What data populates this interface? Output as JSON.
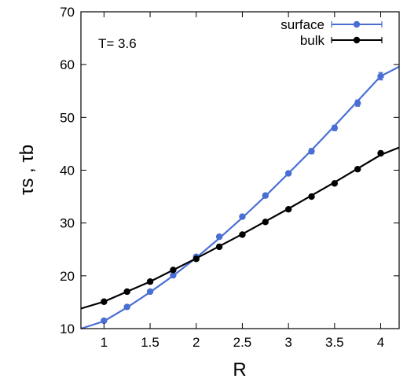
{
  "chart_data": {
    "type": "scatter",
    "xlabel": "R",
    "ylabel": "τs , τb",
    "annotation": "T= 3.6",
    "xlim": [
      0.75,
      4.2
    ],
    "ylim": [
      10,
      70
    ],
    "xticks": [
      1,
      1.5,
      2,
      2.5,
      3,
      3.5,
      4
    ],
    "yticks": [
      10,
      20,
      30,
      40,
      50,
      60,
      70
    ],
    "legend_position": "top-right",
    "series": [
      {
        "name": "surface",
        "color": "#4a6fd4",
        "marker": "circle",
        "points": [
          {
            "x": 1.0,
            "y": 11.5,
            "err": 0.3
          },
          {
            "x": 1.25,
            "y": 14.1,
            "err": 0.3
          },
          {
            "x": 1.5,
            "y": 17.0,
            "err": 0.3
          },
          {
            "x": 1.75,
            "y": 20.1,
            "err": 0.3
          },
          {
            "x": 2.0,
            "y": 23.6,
            "err": 0.3
          },
          {
            "x": 2.25,
            "y": 27.4,
            "err": 0.3
          },
          {
            "x": 2.5,
            "y": 31.2,
            "err": 0.3
          },
          {
            "x": 2.75,
            "y": 35.2,
            "err": 0.3
          },
          {
            "x": 3.0,
            "y": 39.4,
            "err": 0.4
          },
          {
            "x": 3.25,
            "y": 43.6,
            "err": 0.5
          },
          {
            "x": 3.5,
            "y": 48.0,
            "err": 0.5
          },
          {
            "x": 3.75,
            "y": 52.7,
            "err": 0.6
          },
          {
            "x": 4.0,
            "y": 57.8,
            "err": 0.7
          }
        ],
        "fit": [
          {
            "x": 0.75,
            "y": 10.0
          },
          {
            "x": 1.0,
            "y": 11.4
          },
          {
            "x": 1.25,
            "y": 14.0
          },
          {
            "x": 1.5,
            "y": 16.9
          },
          {
            "x": 1.75,
            "y": 20.0
          },
          {
            "x": 2.0,
            "y": 23.4
          },
          {
            "x": 2.25,
            "y": 27.1
          },
          {
            "x": 2.5,
            "y": 31.0
          },
          {
            "x": 2.75,
            "y": 35.1
          },
          {
            "x": 3.0,
            "y": 39.4
          },
          {
            "x": 3.25,
            "y": 43.8
          },
          {
            "x": 3.5,
            "y": 48.4
          },
          {
            "x": 3.75,
            "y": 53.1
          },
          {
            "x": 4.0,
            "y": 57.8
          },
          {
            "x": 4.2,
            "y": 59.6
          }
        ]
      },
      {
        "name": "bulk",
        "color": "#000000",
        "marker": "circle",
        "points": [
          {
            "x": 1.0,
            "y": 15.1,
            "err": 0.2
          },
          {
            "x": 1.25,
            "y": 17.0,
            "err": 0.2
          },
          {
            "x": 1.5,
            "y": 18.9,
            "err": 0.2
          },
          {
            "x": 1.75,
            "y": 21.1,
            "err": 0.2
          },
          {
            "x": 2.0,
            "y": 23.2,
            "err": 0.2
          },
          {
            "x": 2.25,
            "y": 25.5,
            "err": 0.2
          },
          {
            "x": 2.5,
            "y": 27.8,
            "err": 0.2
          },
          {
            "x": 2.75,
            "y": 30.2,
            "err": 0.2
          },
          {
            "x": 3.0,
            "y": 32.6,
            "err": 0.2
          },
          {
            "x": 3.25,
            "y": 35.0,
            "err": 0.2
          },
          {
            "x": 3.5,
            "y": 37.5,
            "err": 0.2
          },
          {
            "x": 3.75,
            "y": 40.2,
            "err": 0.3
          },
          {
            "x": 4.0,
            "y": 43.2,
            "err": 0.4
          }
        ],
        "fit": [
          {
            "x": 0.75,
            "y": 13.8
          },
          {
            "x": 1.0,
            "y": 15.1
          },
          {
            "x": 1.5,
            "y": 18.9
          },
          {
            "x": 2.0,
            "y": 23.3
          },
          {
            "x": 2.5,
            "y": 27.9
          },
          {
            "x": 3.0,
            "y": 32.7
          },
          {
            "x": 3.5,
            "y": 37.7
          },
          {
            "x": 4.0,
            "y": 42.9
          },
          {
            "x": 4.2,
            "y": 44.3
          }
        ]
      }
    ]
  }
}
